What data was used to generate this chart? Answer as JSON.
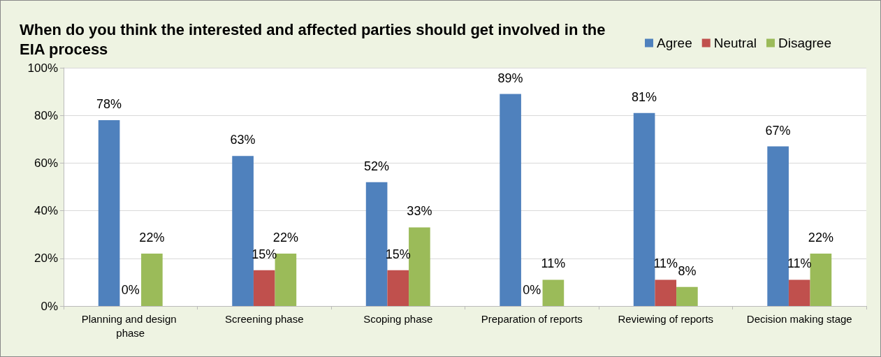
{
  "chart_data": {
    "type": "bar",
    "title": "When do you think the interested and affected parties should get involved in the EIA process",
    "categories": [
      "Planning and design phase",
      "Screening phase",
      "Scoping phase",
      "Preparation of reports",
      "Reviewing of reports",
      "Decision making stage"
    ],
    "series": [
      {
        "name": "Agree",
        "color": "#4f81bd",
        "values": [
          78,
          63,
          52,
          89,
          81,
          67
        ],
        "value_labels": [
          "78%",
          "63%",
          "52%",
          "89%",
          "81%",
          "67%"
        ]
      },
      {
        "name": "Neutral",
        "color": "#c0504d",
        "values": [
          0,
          15,
          15,
          0,
          11,
          11
        ],
        "value_labels": [
          "0%",
          "15%",
          "15%",
          "0%",
          "11%",
          "11%"
        ]
      },
      {
        "name": "Disagree",
        "color": "#9bbb59",
        "values": [
          22,
          22,
          33,
          11,
          8,
          22
        ],
        "value_labels": [
          "22%",
          "22%",
          "33%",
          "11%",
          "8%",
          "22%"
        ]
      }
    ],
    "ylim": [
      0,
      100
    ],
    "yticks": [
      {
        "value": 0,
        "label": "0%"
      },
      {
        "value": 20,
        "label": "20%"
      },
      {
        "value": 40,
        "label": "40%"
      },
      {
        "value": 60,
        "label": "60%"
      },
      {
        "value": 80,
        "label": "80%"
      },
      {
        "value": 100,
        "label": "100%"
      }
    ],
    "grid": "y",
    "legend": "top right"
  }
}
